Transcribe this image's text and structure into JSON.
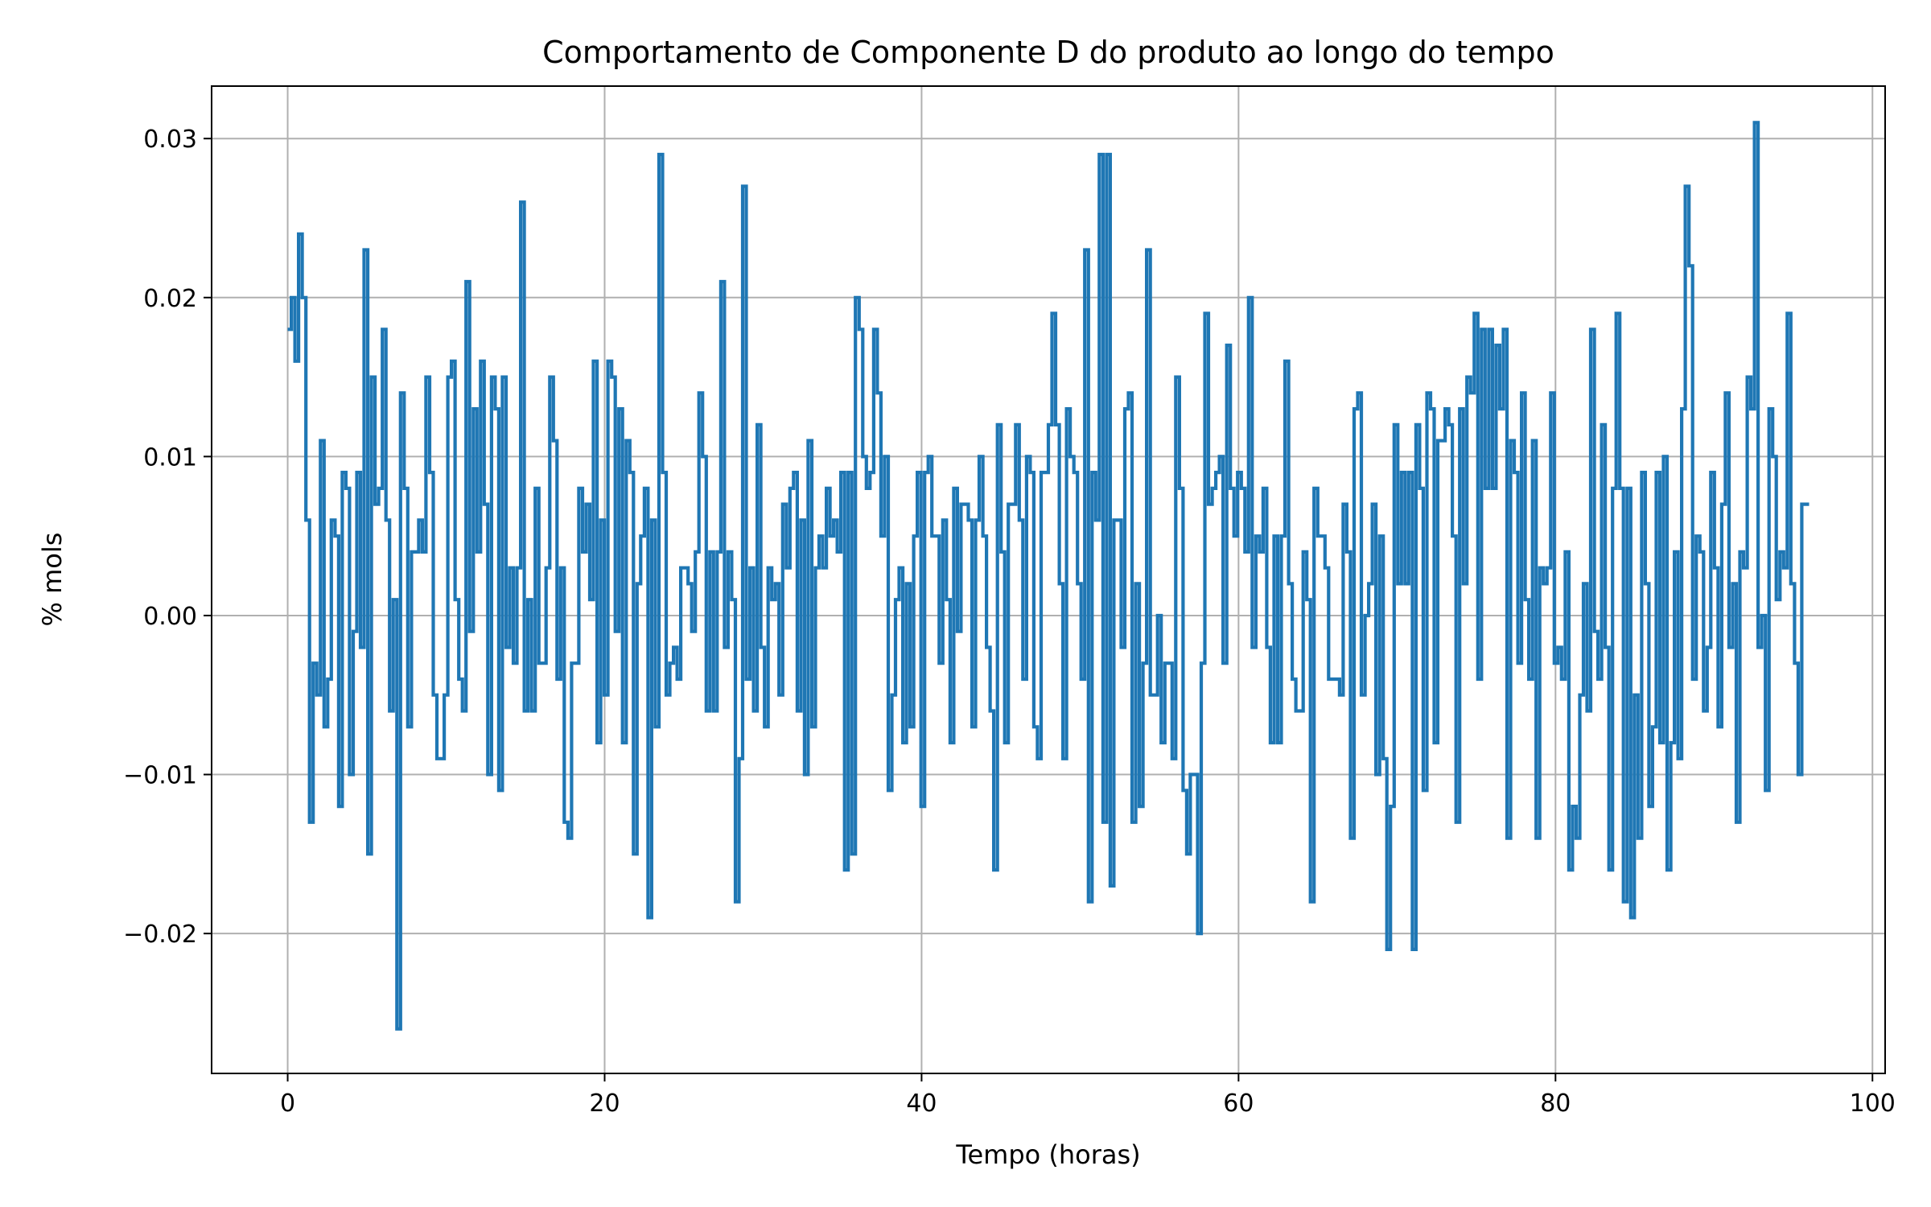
{
  "chart_data": {
    "type": "line",
    "title": "Comportamento de Componente D do produto ao longo do tempo",
    "xlabel": "Tempo (horas)",
    "ylabel": "% mols",
    "xlim": [
      -4.8,
      100.8
    ],
    "ylim": [
      -0.0288,
      0.0333
    ],
    "xticks": [
      0,
      20,
      40,
      60,
      80,
      100
    ],
    "xtick_labels": [
      "0",
      "20",
      "40",
      "60",
      "80",
      "100"
    ],
    "yticks": [
      -0.02,
      -0.01,
      0.0,
      0.01,
      0.02,
      0.03
    ],
    "ytick_labels": [
      "−0.02",
      "−0.01",
      "0.00",
      "0.01",
      "0.02",
      "0.03"
    ],
    "grid": true,
    "line_color": "#1f77b4",
    "step": 0.25,
    "series": [
      {
        "x_start": 0,
        "x_end": 96,
        "values": [
          0.018,
          0.02,
          0.016,
          0.024,
          0.02,
          0.006,
          -0.013,
          -0.003,
          -0.005,
          0.011,
          -0.007,
          -0.004,
          0.006,
          0.005,
          -0.012,
          0.009,
          0.008,
          -0.01,
          -0.001,
          0.009,
          -0.002,
          0.023,
          -0.015,
          0.015,
          0.007,
          0.008,
          0.018,
          0.006,
          -0.006,
          0.001,
          -0.026,
          0.014,
          0.008,
          -0.007,
          0.004,
          0.004,
          0.006,
          0.004,
          0.015,
          0.009,
          -0.005,
          -0.009,
          -0.009,
          -0.005,
          0.015,
          0.016,
          0.001,
          -0.004,
          -0.006,
          0.021,
          -0.001,
          0.013,
          0.004,
          0.016,
          0.007,
          -0.01,
          0.015,
          0.013,
          -0.011,
          0.015,
          -0.002,
          0.003,
          -0.003,
          0.003,
          0.026,
          -0.006,
          0.001,
          -0.006,
          0.008,
          -0.003,
          -0.003,
          0.003,
          0.015,
          0.011,
          -0.004,
          0.003,
          -0.013,
          -0.014,
          -0.003,
          -0.003,
          0.008,
          0.004,
          0.007,
          0.001,
          0.016,
          -0.008,
          0.006,
          -0.005,
          0.016,
          0.015,
          -0.001,
          0.013,
          -0.008,
          0.011,
          0.009,
          -0.015,
          0.002,
          0.005,
          0.008,
          -0.019,
          0.006,
          -0.007,
          0.029,
          0.009,
          -0.005,
          -0.003,
          -0.002,
          -0.004,
          0.003,
          0.003,
          0.002,
          -0.001,
          0.004,
          0.014,
          0.01,
          -0.006,
          0.004,
          -0.006,
          0.004,
          0.021,
          -0.002,
          0.004,
          0.001,
          -0.018,
          -0.009,
          0.027,
          -0.004,
          0.003,
          -0.006,
          0.012,
          -0.002,
          -0.007,
          0.003,
          0.001,
          0.002,
          -0.005,
          0.007,
          0.003,
          0.008,
          0.009,
          -0.006,
          0.006,
          -0.01,
          0.011,
          -0.007,
          0.003,
          0.005,
          0.003,
          0.008,
          0.005,
          0.006,
          0.004,
          0.009,
          -0.016,
          0.009,
          -0.015,
          0.02,
          0.018,
          0.01,
          0.008,
          0.009,
          0.018,
          0.014,
          0.005,
          0.01,
          -0.011,
          -0.005,
          0.001,
          0.003,
          -0.008,
          0.002,
          -0.007,
          0.005,
          0.009,
          -0.012,
          0.009,
          0.01,
          0.005,
          0.005,
          -0.003,
          0.006,
          0.001,
          -0.008,
          0.008,
          -0.001,
          0.007,
          0.007,
          0.006,
          -0.007,
          0.006,
          0.01,
          0.005,
          -0.002,
          -0.006,
          -0.016,
          0.012,
          0.004,
          -0.008,
          0.007,
          0.007,
          0.012,
          0.006,
          -0.004,
          0.01,
          0.009,
          -0.007,
          -0.009,
          0.009,
          0.009,
          0.012,
          0.019,
          0.012,
          0.002,
          -0.009,
          0.013,
          0.01,
          0.009,
          0.002,
          -0.004,
          0.023,
          -0.018,
          0.009,
          0.006,
          0.029,
          -0.013,
          0.029,
          -0.017,
          0.006,
          0.006,
          -0.002,
          0.013,
          0.014,
          -0.013,
          0.002,
          -0.012,
          -0.003,
          0.023,
          -0.005,
          -0.005,
          0.0,
          -0.008,
          -0.003,
          -0.003,
          -0.009,
          0.015,
          0.008,
          -0.011,
          -0.015,
          -0.01,
          -0.01,
          -0.02,
          -0.003,
          0.019,
          0.007,
          0.008,
          0.009,
          0.01,
          -0.003,
          0.017,
          0.008,
          0.005,
          0.009,
          0.008,
          0.004,
          0.02,
          -0.002,
          0.005,
          0.004,
          0.008,
          -0.002,
          -0.008,
          0.005,
          -0.008,
          0.005,
          0.016,
          0.002,
          -0.004,
          -0.006,
          -0.006,
          0.004,
          0.001,
          -0.018,
          0.008,
          0.005,
          0.005,
          0.003,
          -0.004,
          -0.004,
          -0.004,
          -0.005,
          0.007,
          0.004,
          -0.014,
          0.013,
          0.014,
          -0.005,
          0.0,
          0.002,
          0.007,
          -0.01,
          0.005,
          -0.009,
          -0.021,
          -0.012,
          0.012,
          0.002,
          0.009,
          0.002,
          0.009,
          -0.021,
          0.012,
          0.008,
          -0.011,
          0.014,
          0.013,
          -0.008,
          0.011,
          0.011,
          0.013,
          0.012,
          0.005,
          -0.013,
          0.013,
          0.002,
          0.015,
          0.014,
          0.019,
          -0.004,
          0.018,
          0.008,
          0.018,
          0.008,
          0.017,
          0.013,
          0.018,
          -0.014,
          0.011,
          0.009,
          -0.003,
          0.014,
          0.001,
          -0.004,
          0.011,
          -0.014,
          0.003,
          0.002,
          0.003,
          0.014,
          -0.003,
          -0.002,
          -0.004,
          0.004,
          -0.016,
          -0.012,
          -0.014,
          -0.005,
          0.002,
          -0.006,
          0.018,
          -0.001,
          -0.004,
          0.012,
          -0.002,
          -0.016,
          0.008,
          0.019,
          0.008,
          -0.018,
          0.008,
          -0.019,
          -0.005,
          -0.014,
          0.009,
          0.002,
          -0.012,
          -0.007,
          0.009,
          -0.008,
          0.01,
          -0.016,
          -0.008,
          0.004,
          -0.009,
          0.013,
          0.027,
          0.022,
          -0.004,
          0.005,
          0.004,
          -0.006,
          -0.002,
          0.009,
          0.003,
          -0.007,
          0.007,
          0.014,
          -0.002,
          0.002,
          -0.013,
          0.004,
          0.003,
          0.015,
          0.013,
          0.031,
          -0.002,
          0.0,
          -0.011,
          0.013,
          0.01,
          0.001,
          0.004,
          0.003,
          0.019,
          0.002,
          -0.003,
          -0.01,
          0.007,
          0.007
        ]
      }
    ]
  }
}
